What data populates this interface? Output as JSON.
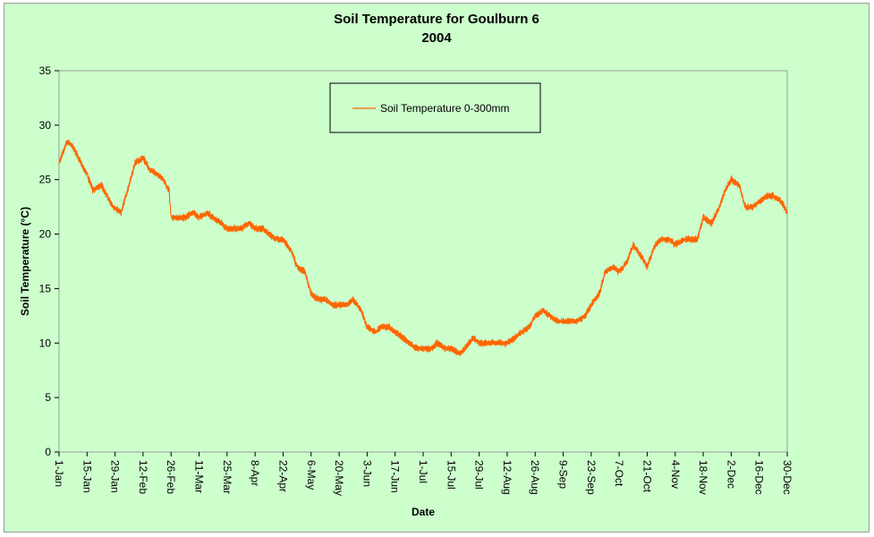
{
  "chart_data": {
    "type": "line",
    "title": "Soil Temperature for Goulburn 6",
    "subtitle": "2004",
    "xlabel": "Date",
    "ylabel": "Soil Temperature (°C)",
    "ylim": [
      0,
      35
    ],
    "yticks": [
      0,
      5,
      10,
      15,
      20,
      25,
      30,
      35
    ],
    "xlim": [
      "2004-01-01",
      "2004-12-30"
    ],
    "xtick_labels": [
      "1-Jan",
      "15-Jan",
      "29-Jan",
      "12-Feb",
      "26-Feb",
      "11-Mar",
      "25-Mar",
      "8-Apr",
      "22-Apr",
      "6-May",
      "20-May",
      "3-Jun",
      "17-Jun",
      "1-Jul",
      "15-Jul",
      "29-Jul",
      "12-Aug",
      "26-Aug",
      "9-Sep",
      "23-Sep",
      "7-Oct",
      "21-Oct",
      "4-Nov",
      "18-Nov",
      "2-Dec",
      "16-Dec",
      "30-Dec"
    ],
    "grid": false,
    "legend_position": "top-center",
    "colors": {
      "series": "#ff6600",
      "plot_background": "#ccffcc"
    },
    "series": [
      {
        "name": "Soil Temperature  0-300mm",
        "x": [
          "2004-01-01",
          "2004-01-05",
          "2004-01-08",
          "2004-01-12",
          "2004-01-15",
          "2004-01-18",
          "2004-01-22",
          "2004-01-25",
          "2004-01-28",
          "2004-02-01",
          "2004-02-05",
          "2004-02-08",
          "2004-02-12",
          "2004-02-15",
          "2004-02-19",
          "2004-02-22",
          "2004-02-25",
          "2004-02-26",
          "2004-02-29",
          "2004-03-04",
          "2004-03-08",
          "2004-03-11",
          "2004-03-15",
          "2004-03-18",
          "2004-03-22",
          "2004-03-25",
          "2004-03-29",
          "2004-04-01",
          "2004-04-05",
          "2004-04-08",
          "2004-04-12",
          "2004-04-15",
          "2004-04-19",
          "2004-04-22",
          "2004-04-26",
          "2004-04-29",
          "2004-05-03",
          "2004-05-06",
          "2004-05-10",
          "2004-05-13",
          "2004-05-17",
          "2004-05-20",
          "2004-05-24",
          "2004-05-27",
          "2004-05-31",
          "2004-06-03",
          "2004-06-07",
          "2004-06-10",
          "2004-06-14",
          "2004-06-17",
          "2004-06-21",
          "2004-06-24",
          "2004-06-28",
          "2004-07-01",
          "2004-07-05",
          "2004-07-08",
          "2004-07-12",
          "2004-07-15",
          "2004-07-19",
          "2004-07-22",
          "2004-07-26",
          "2004-07-29",
          "2004-08-02",
          "2004-08-05",
          "2004-08-09",
          "2004-08-12",
          "2004-08-16",
          "2004-08-19",
          "2004-08-23",
          "2004-08-26",
          "2004-08-30",
          "2004-09-02",
          "2004-09-06",
          "2004-09-09",
          "2004-09-13",
          "2004-09-16",
          "2004-09-20",
          "2004-09-23",
          "2004-09-27",
          "2004-09-30",
          "2004-10-04",
          "2004-10-07",
          "2004-10-11",
          "2004-10-14",
          "2004-10-18",
          "2004-10-21",
          "2004-10-25",
          "2004-10-28",
          "2004-11-01",
          "2004-11-04",
          "2004-11-08",
          "2004-11-11",
          "2004-11-15",
          "2004-11-18",
          "2004-11-22",
          "2004-11-25",
          "2004-11-29",
          "2004-12-02",
          "2004-12-06",
          "2004-12-09",
          "2004-12-13",
          "2004-12-16",
          "2004-12-20",
          "2004-12-23",
          "2004-12-27",
          "2004-12-30"
        ],
        "y": [
          26.5,
          28.5,
          28.0,
          26.5,
          25.5,
          24.0,
          24.5,
          23.5,
          22.5,
          22.0,
          24.5,
          26.5,
          27.0,
          26.0,
          25.5,
          25.0,
          24.0,
          21.5,
          21.5,
          21.5,
          22.0,
          21.5,
          22.0,
          21.5,
          21.0,
          20.5,
          20.5,
          20.5,
          21.0,
          20.5,
          20.5,
          20.0,
          19.5,
          19.5,
          18.5,
          17.0,
          16.5,
          14.5,
          14.0,
          14.0,
          13.5,
          13.5,
          13.5,
          14.0,
          13.0,
          11.5,
          11.0,
          11.5,
          11.5,
          11.0,
          10.5,
          10.0,
          9.5,
          9.5,
          9.5,
          10.0,
          9.5,
          9.5,
          9.0,
          9.5,
          10.5,
          10.0,
          10.0,
          10.0,
          10.0,
          10.0,
          10.5,
          11.0,
          11.5,
          12.5,
          13.0,
          12.5,
          12.0,
          12.0,
          12.0,
          12.0,
          12.5,
          13.5,
          14.5,
          16.5,
          17.0,
          16.5,
          17.5,
          19.0,
          18.0,
          17.0,
          19.0,
          19.5,
          19.5,
          19.0,
          19.5,
          19.5,
          19.5,
          21.5,
          21.0,
          22.0,
          24.0,
          25.0,
          24.5,
          22.5,
          22.5,
          23.0,
          23.5,
          23.5,
          23.0,
          22.0
        ]
      }
    ]
  }
}
